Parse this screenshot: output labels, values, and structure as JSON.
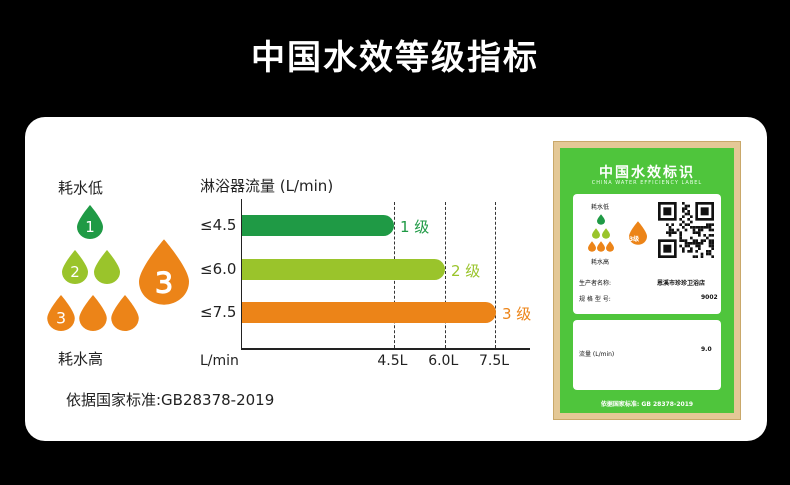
{
  "page": {
    "title": "中国水效等级指标"
  },
  "legend": {
    "low_label": "耗水低",
    "high_label": "耗水高",
    "drops": [
      "1",
      "2",
      "2",
      "3",
      "3",
      "3"
    ],
    "big_drop": "3"
  },
  "chart_data": {
    "type": "bar",
    "title": "淋浴器流量 (L/min)",
    "categories": [
      "≤4.5",
      "≤6.0",
      "≤7.5"
    ],
    "values": [
      4.5,
      6.0,
      7.5
    ],
    "grade_labels": [
      "1 级",
      "2 级",
      "3 级"
    ],
    "colors": [
      "#1f9a45",
      "#9ac42b",
      "#ec8418"
    ],
    "x_unit_label": "L/min",
    "x_ticks": [
      "4.5L",
      "6.0L",
      "7.5L"
    ],
    "xlim": [
      0,
      7.5
    ]
  },
  "standard_note": "依据国家标准:GB28378-2019",
  "label": {
    "title": "中国水效标识",
    "subtitle": "CHINA WATER EFFICIENCY LABEL",
    "low": "耗水低",
    "high": "耗水高",
    "grade": "3级",
    "producer_label": "生产者名称:",
    "producer_value": "恩溪市珍珍卫浴店",
    "model_label": "规 格 型 号:",
    "model_value": "9002",
    "flow_label": "流量 (L/min)",
    "flow_value": "9.0",
    "footer": "依据国家标准: GB 28378-2019",
    "colors": {
      "frame": "#e4c896",
      "green": "#4fc53c"
    }
  }
}
